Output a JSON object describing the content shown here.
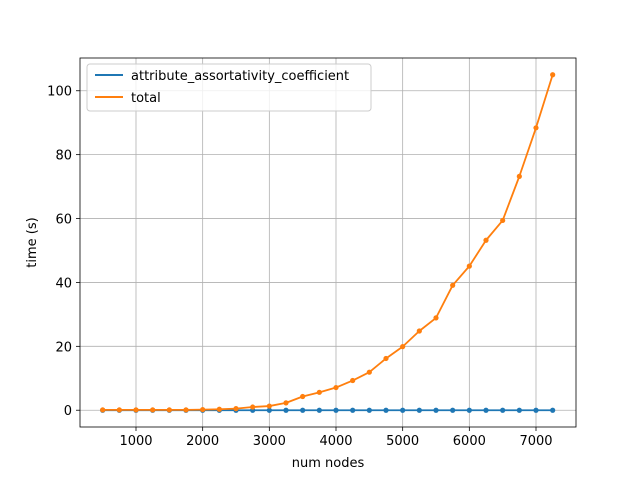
{
  "chart_data": {
    "type": "line",
    "xlabel": "num nodes",
    "ylabel": "time (s)",
    "xlim": [
      160,
      7600
    ],
    "ylim": [
      -5.25,
      110.25
    ],
    "xticks": [
      1000,
      2000,
      3000,
      4000,
      5000,
      6000,
      7000
    ],
    "yticks": [
      0,
      20,
      40,
      60,
      80,
      100
    ],
    "grid": true,
    "legend_position": "top-left",
    "x": [
      500,
      750,
      1000,
      1250,
      1500,
      1750,
      2000,
      2250,
      2500,
      2750,
      3000,
      3250,
      3500,
      3750,
      4000,
      4250,
      4500,
      4750,
      5000,
      5250,
      5500,
      5750,
      6000,
      6250,
      6500,
      6750,
      7000,
      7250
    ],
    "series": [
      {
        "name": "attribute_assortativity_coefficient",
        "color": "#1f77b4",
        "values": [
          0,
          0,
          0,
          0,
          0,
          0,
          0,
          0,
          0,
          0,
          0,
          0,
          0,
          0,
          0,
          0,
          0,
          0,
          0,
          0,
          0,
          0,
          0,
          0,
          0,
          0,
          0,
          0
        ]
      },
      {
        "name": "total",
        "color": "#ff7f0e",
        "values": [
          0.1,
          0.1,
          0.1,
          0.1,
          0.1,
          0.1,
          0.2,
          0.3,
          0.5,
          1.0,
          1.3,
          2.3,
          4.3,
          5.6,
          7.1,
          9.3,
          11.9,
          16.2,
          19.9,
          24.8,
          28.9,
          39.1,
          45.1,
          53.2,
          59.4,
          73.2,
          88.4,
          105.0
        ]
      }
    ]
  }
}
